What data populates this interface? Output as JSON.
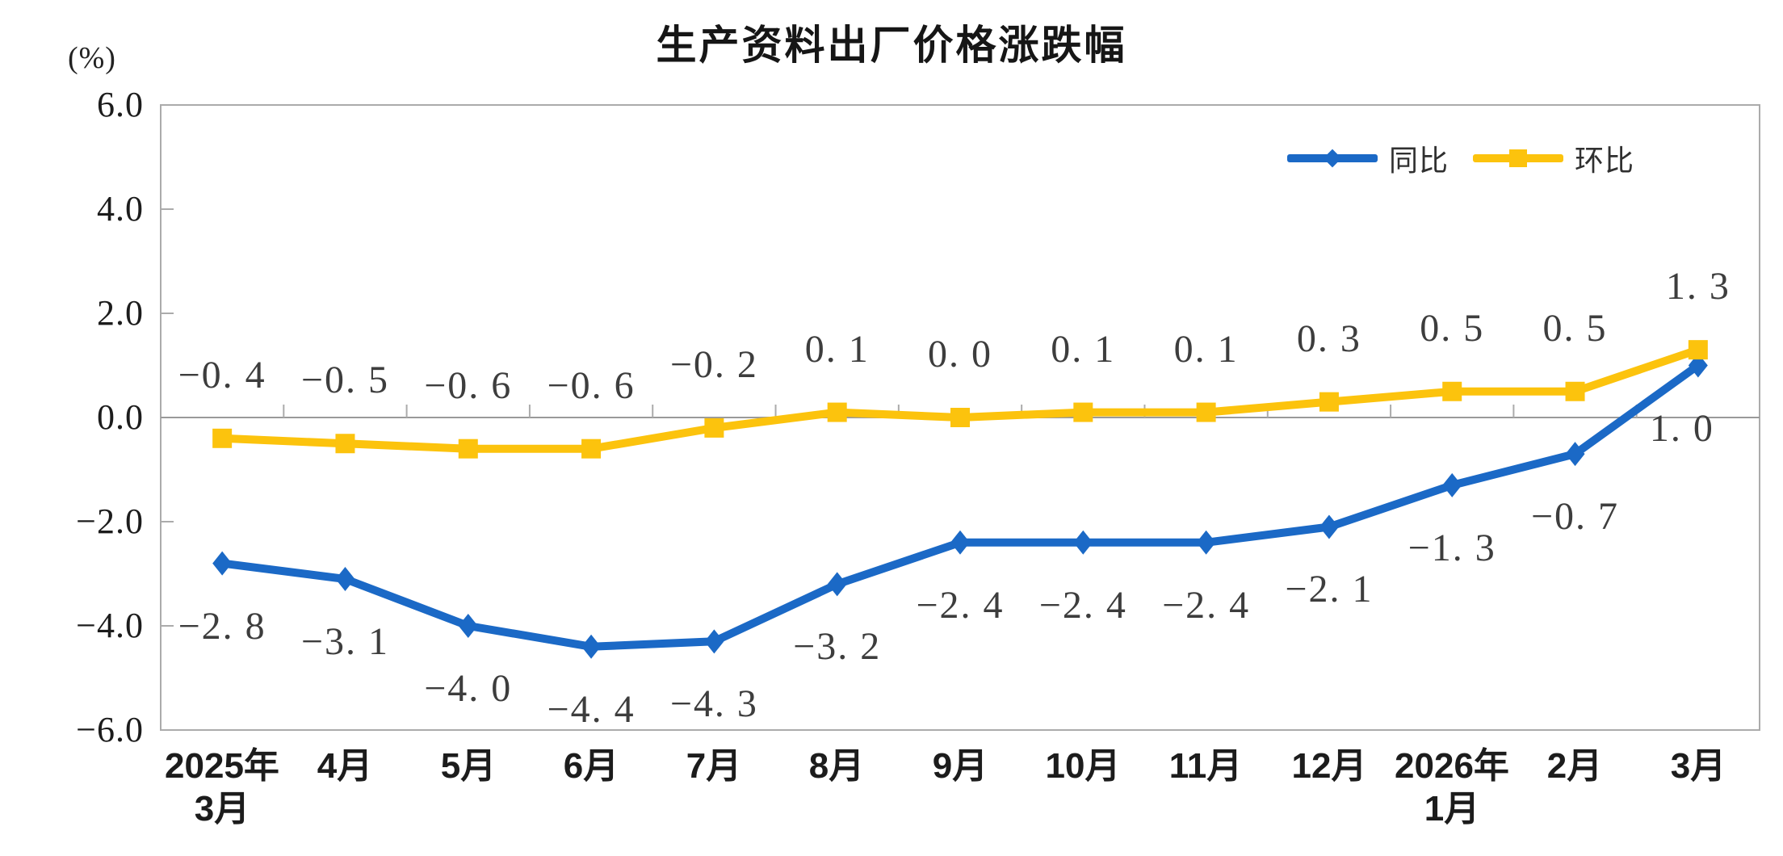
{
  "chart": {
    "title": "生产资料出厂价格涨跌幅",
    "unit_label": "(%)"
  },
  "chart_data": {
    "type": "line",
    "title": "生产资料出厂价格涨跌幅",
    "ylabel": "(%)",
    "ylim": [
      -6.0,
      6.0
    ],
    "ytick_step": 2.0,
    "ytick_labels": [
      "6.0",
      "4.0",
      "2.0",
      "0.0",
      "−2.0",
      "−4.0",
      "−6.0"
    ],
    "grid": false,
    "legend_position": "top-right",
    "categories": [
      "2025年\n3月",
      "4月",
      "5月",
      "6月",
      "7月",
      "8月",
      "9月",
      "10月",
      "11月",
      "12月",
      "2026年\n1月",
      "2月",
      "3月"
    ],
    "series": [
      {
        "name": "同比",
        "color": "#1b69c6",
        "marker": "diamond",
        "values": [
          -2.8,
          -3.1,
          -4.0,
          -4.4,
          -4.3,
          -3.2,
          -2.4,
          -2.4,
          -2.4,
          -2.1,
          -1.3,
          -0.7,
          1.0
        ],
        "point_labels": [
          "−2. 8",
          "−3. 1",
          "−4. 0",
          "−4. 4",
          "−4. 3",
          "−3. 2",
          "−2. 4",
          "−2. 4",
          "−2. 4",
          "−2. 1",
          "−1. 3",
          "−0. 7",
          "1. 0"
        ]
      },
      {
        "name": "环比",
        "color": "#fcc30d",
        "marker": "square",
        "values": [
          -0.4,
          -0.5,
          -0.6,
          -0.6,
          -0.2,
          0.1,
          0.0,
          0.1,
          0.1,
          0.3,
          0.5,
          0.5,
          1.3
        ],
        "point_labels": [
          "−0. 4",
          "−0. 5",
          "−0. 6",
          "−0. 6",
          "−0. 2",
          "0. 1",
          "0. 0",
          "0. 1",
          "0. 1",
          "0. 3",
          "0. 5",
          "0. 5",
          "1. 3"
        ]
      }
    ],
    "style": {
      "axis_color": "#ababab",
      "zero_line_color": "#9a9a9a",
      "axis_text_color": "#1c1c1c",
      "data_label_color": "#3d3d3d",
      "background": "#ffffff"
    }
  }
}
